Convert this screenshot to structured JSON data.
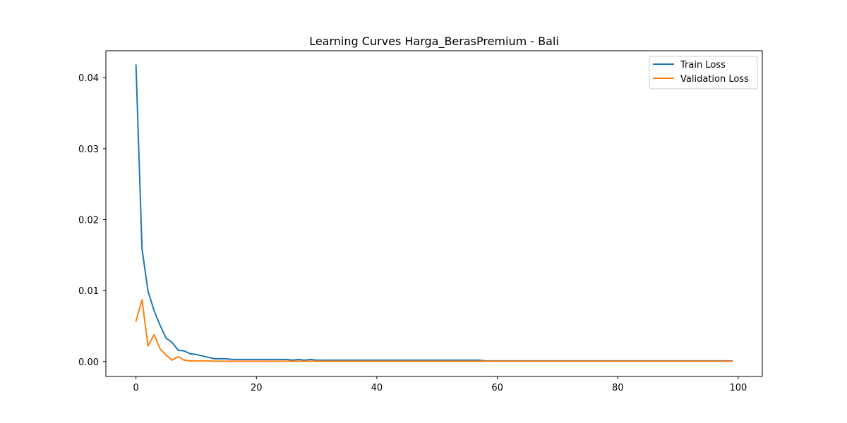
{
  "chart_data": {
    "type": "line",
    "title": "Learning Curves Harga_BerasPremium - Bali",
    "xlabel": "",
    "ylabel": "",
    "xlim": [
      -5,
      104
    ],
    "ylim": [
      -0.0021,
      0.0438
    ],
    "xticks": [
      0,
      20,
      40,
      60,
      80,
      100
    ],
    "yticks": [
      0.0,
      0.01,
      0.02,
      0.03,
      0.04
    ],
    "xtick_labels": [
      "0",
      "20",
      "40",
      "60",
      "80",
      "100"
    ],
    "ytick_labels": [
      "0.00",
      "0.01",
      "0.02",
      "0.03",
      "0.04"
    ],
    "grid": false,
    "legend_position": "upper right",
    "series": [
      {
        "name": "Train Loss",
        "color": "#1f77b4",
        "x": [
          0,
          1,
          2,
          3,
          4,
          5,
          6,
          7,
          8,
          9,
          10,
          11,
          12,
          13,
          14,
          15,
          16,
          17,
          18,
          19,
          20,
          21,
          22,
          23,
          24,
          25,
          26,
          27,
          28,
          29,
          30,
          31,
          32,
          33,
          34,
          35,
          36,
          37,
          38,
          39,
          40,
          41,
          42,
          43,
          44,
          45,
          46,
          47,
          48,
          49,
          50,
          51,
          52,
          53,
          54,
          55,
          56,
          57,
          58,
          59,
          60,
          61,
          62,
          63,
          64,
          65,
          66,
          67,
          68,
          69,
          70,
          71,
          72,
          73,
          74,
          75,
          76,
          77,
          78,
          79,
          80,
          81,
          82,
          83,
          84,
          85,
          86,
          87,
          88,
          89,
          90,
          91,
          92,
          93,
          94,
          95,
          96,
          97,
          98,
          99
        ],
        "values": [
          0.0418,
          0.0159,
          0.0099,
          0.0072,
          0.0051,
          0.0033,
          0.0027,
          0.0016,
          0.0015,
          0.0011,
          0.001,
          0.0008,
          0.0006,
          0.0004,
          0.0004,
          0.0004,
          0.0003,
          0.0003,
          0.0003,
          0.0003,
          0.0003,
          0.0003,
          0.0003,
          0.0003,
          0.0003,
          0.0003,
          0.0002,
          0.0003,
          0.0002,
          0.0003,
          0.0002,
          0.0002,
          0.0002,
          0.0002,
          0.0002,
          0.0002,
          0.0002,
          0.0002,
          0.0002,
          0.0002,
          0.0002,
          0.0002,
          0.0002,
          0.0002,
          0.0002,
          0.0002,
          0.0002,
          0.0002,
          0.0002,
          0.0002,
          0.0002,
          0.0002,
          0.0002,
          0.0002,
          0.0002,
          0.0002,
          0.0002,
          0.0002,
          0.0001,
          0.0001,
          0.0001,
          0.0001,
          0.0001,
          0.0001,
          0.0001,
          0.0001,
          0.0001,
          0.0001,
          0.0001,
          0.0001,
          0.0001,
          0.0001,
          0.0001,
          0.0001,
          0.0001,
          0.0001,
          0.0001,
          0.0001,
          0.0001,
          0.0001,
          0.0001,
          0.0001,
          0.0001,
          0.0001,
          0.0001,
          0.0001,
          0.0001,
          0.0001,
          0.0001,
          0.0001,
          0.0001,
          0.0001,
          0.0001,
          0.0001,
          0.0001,
          0.0001,
          0.0001,
          0.0001,
          0.0001,
          0.0001
        ]
      },
      {
        "name": "Validation Loss",
        "color": "#ff7f0e",
        "x": [
          0,
          1,
          2,
          3,
          4,
          5,
          6,
          7,
          8,
          9,
          10,
          11,
          12,
          13,
          14,
          15,
          16,
          17,
          18,
          19,
          20,
          21,
          22,
          23,
          24,
          25,
          26,
          27,
          28,
          29,
          30,
          31,
          32,
          33,
          34,
          35,
          36,
          37,
          38,
          39,
          40,
          41,
          42,
          43,
          44,
          45,
          46,
          47,
          48,
          49,
          50,
          51,
          52,
          53,
          54,
          55,
          56,
          57,
          58,
          59,
          60,
          61,
          62,
          63,
          64,
          65,
          66,
          67,
          68,
          69,
          70,
          71,
          72,
          73,
          74,
          75,
          76,
          77,
          78,
          79,
          80,
          81,
          82,
          83,
          84,
          85,
          86,
          87,
          88,
          89,
          90,
          91,
          92,
          93,
          94,
          95,
          96,
          97,
          98,
          99
        ],
        "values": [
          0.0057,
          0.0087,
          0.0022,
          0.0038,
          0.0018,
          0.0009,
          0.0002,
          0.0007,
          0.0002,
          0.0001,
          0.0001,
          0.0001,
          0.0001,
          5e-05,
          5e-05,
          5e-05,
          5e-05,
          5e-05,
          5e-05,
          5e-05,
          5e-05,
          5e-05,
          5e-05,
          5e-05,
          5e-05,
          5e-05,
          5e-05,
          5e-05,
          5e-05,
          5e-05,
          5e-05,
          5e-05,
          5e-05,
          5e-05,
          5e-05,
          5e-05,
          5e-05,
          5e-05,
          5e-05,
          5e-05,
          5e-05,
          5e-05,
          5e-05,
          5e-05,
          5e-05,
          5e-05,
          5e-05,
          5e-05,
          5e-05,
          5e-05,
          5e-05,
          5e-05,
          5e-05,
          5e-05,
          5e-05,
          5e-05,
          5e-05,
          5e-05,
          5e-05,
          5e-05,
          5e-05,
          5e-05,
          5e-05,
          5e-05,
          5e-05,
          5e-05,
          5e-05,
          5e-05,
          5e-05,
          5e-05,
          5e-05,
          5e-05,
          5e-05,
          5e-05,
          5e-05,
          5e-05,
          5e-05,
          5e-05,
          5e-05,
          5e-05,
          5e-05,
          5e-05,
          5e-05,
          5e-05,
          5e-05,
          5e-05,
          5e-05,
          5e-05,
          5e-05,
          5e-05,
          5e-05,
          5e-05,
          5e-05,
          5e-05,
          5e-05,
          5e-05,
          5e-05,
          5e-05,
          5e-05,
          5e-05
        ]
      }
    ]
  }
}
